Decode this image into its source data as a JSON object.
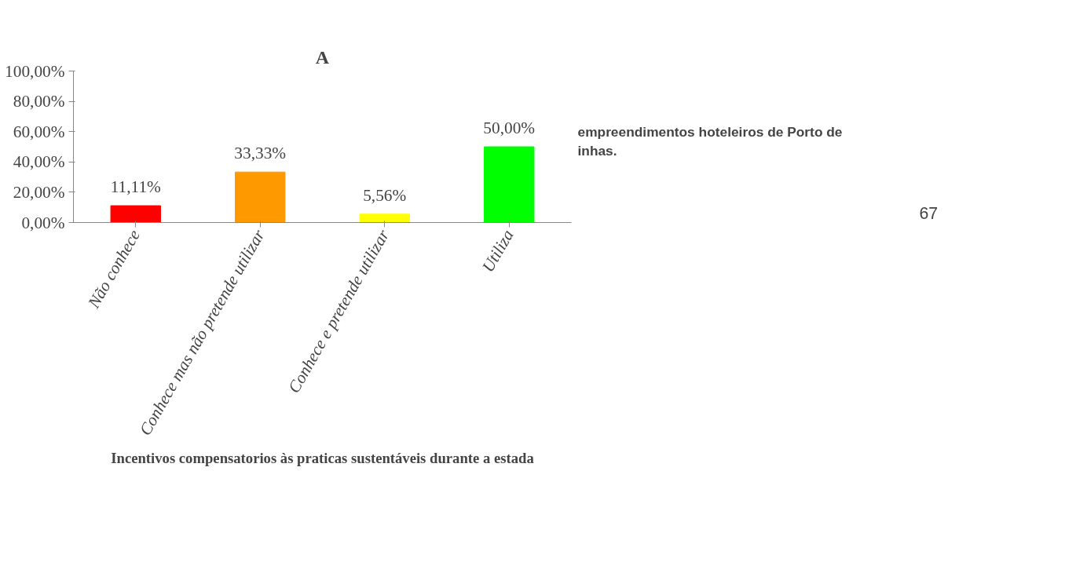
{
  "chart_data": {
    "type": "bar",
    "title": "A",
    "xlabel": "Incentivos compensatorios às praticas sustentáveis durante a estada",
    "categories": [
      "Não conhece",
      "Conhece mas não pretende utilizar",
      "Conhece e pretende utilizar",
      "Utiliza"
    ],
    "values": [
      11.11,
      33.33,
      5.56,
      50.0
    ],
    "colors": [
      "#ff0000",
      "#ff9900",
      "#ffff00",
      "#00ff00"
    ],
    "value_labels": [
      "11,11%",
      "33,33%",
      "5,56%",
      "50,00%"
    ],
    "ylim": [
      0,
      100
    ],
    "yticks": [
      {
        "value": 0,
        "label": "0,00%"
      },
      {
        "value": 20,
        "label": "20,00%"
      },
      {
        "value": 40,
        "label": "40,00%"
      },
      {
        "value": 60,
        "label": "60,00%"
      },
      {
        "value": 80,
        "label": "80,00%"
      },
      {
        "value": 100,
        "label": "100,00%"
      }
    ],
    "grid": false,
    "annotations": [
      "empreendimentos hoteleiros de Porto de\ninhas.",
      "67"
    ]
  }
}
